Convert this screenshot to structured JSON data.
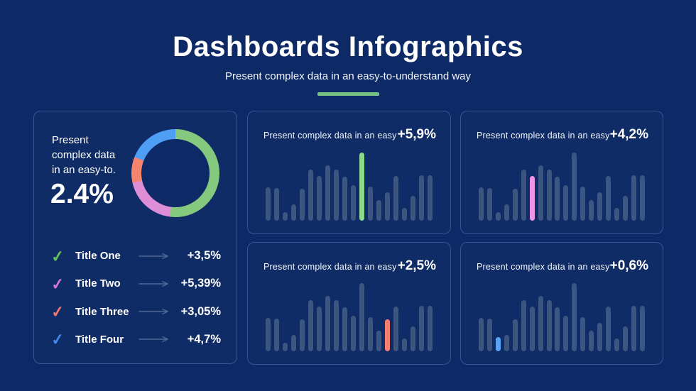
{
  "header": {
    "title": "Dashboards Infographics",
    "subtitle": "Present complex data in an easy-to-understand way",
    "accent_color": "#75c487"
  },
  "donut_panel": {
    "description": "Present\ncomplex data\nin an easy-to.",
    "value": "2.4%",
    "segments": [
      {
        "name": "green",
        "pct": 52,
        "color": "#85c97e"
      },
      {
        "name": "pink",
        "pct": 19.5,
        "color": "#dd8ed6"
      },
      {
        "name": "salmon",
        "pct": 9.5,
        "color": "#f5846e"
      },
      {
        "name": "blue",
        "pct": 19,
        "color": "#4f9ef5"
      }
    ],
    "legend": [
      {
        "label": "Title One",
        "value": "+3,5%",
        "check_color": "#66c253"
      },
      {
        "label": "Title Two",
        "value": "+5,39%",
        "check_color": "#d873d8"
      },
      {
        "label": "Title Three",
        "value": "+3,05%",
        "check_color": "#f4756b"
      },
      {
        "label": "Title Four",
        "value": "+4,7%",
        "check_color": "#4187f0"
      }
    ]
  },
  "bar_pattern": [
    47,
    46,
    12,
    23,
    45,
    72,
    63,
    78,
    72,
    62,
    50,
    96,
    48,
    29,
    40,
    63,
    18,
    35,
    64,
    64
  ],
  "bar_panels": [
    {
      "title": "Present complex data in an easy",
      "value": "+5,9%",
      "highlight_index": 11,
      "highlight_color": "#8ed88c"
    },
    {
      "title": "Present complex data in an easy",
      "value": "+4,2%",
      "highlight_index": 6,
      "highlight_color": "#ee96e6"
    },
    {
      "title": "Present complex data in an easy",
      "value": "+2,5%",
      "highlight_index": 14,
      "highlight_color": "#f87e72",
      "highlight_height": 45
    },
    {
      "title": "Present complex data in an easy",
      "value": "+0,6%",
      "highlight_index": 2,
      "highlight_color": "#5aa2f2",
      "highlight_height": 20
    }
  ],
  "colors": {
    "background": "#0d2a66",
    "bar_default": "#3d5581",
    "panel_border": "#4e6ba3",
    "arrow": "#5d739e"
  },
  "chart_data": [
    {
      "type": "pie",
      "title": "Present complex data in an easy-to.",
      "center_label": "2.4%",
      "labels": [
        "Title One",
        "Title Two",
        "Title Three",
        "Title Four"
      ],
      "values": [
        52,
        19.5,
        9.5,
        19
      ],
      "colors": [
        "#85c97e",
        "#dd8ed6",
        "#f5846e",
        "#4f9ef5"
      ],
      "legend_values": [
        "+3,5%",
        "+5,39%",
        "+3,05%",
        "+4,7%"
      ],
      "legend_position": "below",
      "donut": true
    },
    {
      "type": "bar",
      "title": "Present complex data in an easy",
      "annotation": "+5,9%",
      "values": [
        47,
        46,
        12,
        23,
        45,
        72,
        63,
        78,
        72,
        62,
        50,
        96,
        48,
        29,
        40,
        63,
        18,
        35,
        64,
        64
      ],
      "highlight_index": 11,
      "highlight_color": "#8ed88c",
      "ylim": [
        0,
        100
      ],
      "grid": false
    },
    {
      "type": "bar",
      "title": "Present complex data in an easy",
      "annotation": "+4,2%",
      "values": [
        47,
        46,
        12,
        23,
        45,
        72,
        63,
        78,
        72,
        62,
        50,
        96,
        48,
        29,
        40,
        63,
        18,
        35,
        64,
        64
      ],
      "highlight_index": 6,
      "highlight_color": "#ee96e6",
      "ylim": [
        0,
        100
      ],
      "grid": false
    },
    {
      "type": "bar",
      "title": "Present complex data in an easy",
      "annotation": "+2,5%",
      "values": [
        47,
        46,
        12,
        23,
        45,
        72,
        63,
        78,
        72,
        62,
        50,
        96,
        48,
        29,
        45,
        63,
        18,
        35,
        64,
        64
      ],
      "highlight_index": 14,
      "highlight_color": "#f87e72",
      "ylim": [
        0,
        100
      ],
      "grid": false
    },
    {
      "type": "bar",
      "title": "Present complex data in an easy",
      "annotation": "+0,6%",
      "values": [
        47,
        46,
        20,
        23,
        45,
        72,
        63,
        78,
        72,
        62,
        50,
        96,
        48,
        29,
        40,
        63,
        18,
        35,
        64,
        64
      ],
      "highlight_index": 2,
      "highlight_color": "#5aa2f2",
      "ylim": [
        0,
        100
      ],
      "grid": false
    }
  ]
}
